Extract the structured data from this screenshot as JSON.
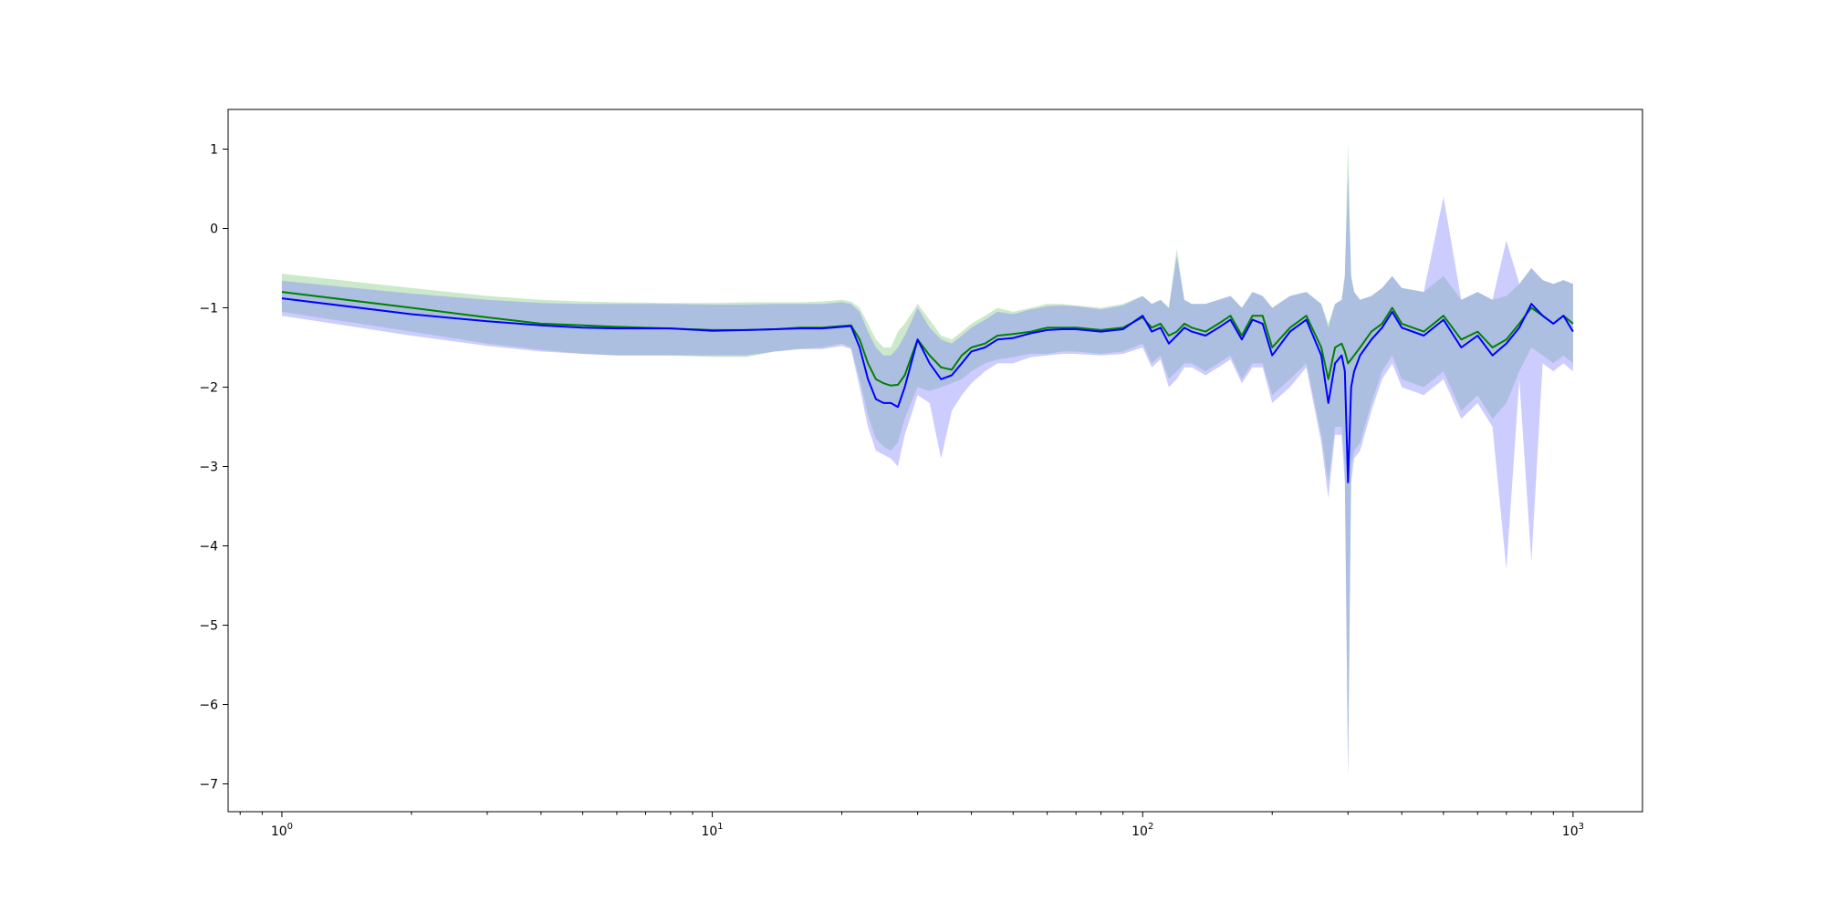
{
  "chart_data": {
    "type": "line",
    "title": "",
    "xlabel": "",
    "ylabel": "",
    "x_scale": "log",
    "xlim": [
      0.75,
      1450
    ],
    "ylim": [
      -7.35,
      1.5
    ],
    "grid": false,
    "legend": "none",
    "x_ticks": [
      {
        "value": 1,
        "base": "10",
        "exp": "0"
      },
      {
        "value": 10,
        "base": "10",
        "exp": "1"
      },
      {
        "value": 100,
        "base": "10",
        "exp": "2"
      },
      {
        "value": 1000,
        "base": "10",
        "exp": "3"
      }
    ],
    "y_ticks": [
      {
        "value": 1,
        "label": "1"
      },
      {
        "value": 0,
        "label": "0"
      },
      {
        "value": -1,
        "label": "−1"
      },
      {
        "value": -2,
        "label": "−2"
      },
      {
        "value": -3,
        "label": "−3"
      },
      {
        "value": -4,
        "label": "−4"
      },
      {
        "value": -5,
        "label": "−5"
      },
      {
        "value": -6,
        "label": "−6"
      },
      {
        "value": -7,
        "label": "−7"
      }
    ],
    "series": [
      {
        "color": "#008000",
        "band_color": "#7fc77f",
        "x": [
          1,
          2,
          3,
          4,
          5,
          6,
          8,
          10,
          12,
          14,
          16,
          18,
          20,
          21,
          22,
          23,
          24,
          25,
          26,
          27,
          28,
          30,
          32,
          34,
          36,
          38,
          40,
          43,
          46,
          50,
          55,
          60,
          65,
          70,
          80,
          90,
          100,
          105,
          110,
          115,
          120,
          125,
          130,
          140,
          150,
          160,
          170,
          180,
          190,
          200,
          220,
          240,
          260,
          270,
          280,
          290,
          295,
          300,
          305,
          310,
          320,
          340,
          360,
          380,
          400,
          450,
          500,
          550,
          600,
          650,
          700,
          750,
          800,
          850,
          900,
          950,
          1000
        ],
        "y": [
          -0.8,
          -1.0,
          -1.12,
          -1.2,
          -1.22,
          -1.24,
          -1.26,
          -1.28,
          -1.28,
          -1.27,
          -1.25,
          -1.25,
          -1.23,
          -1.22,
          -1.4,
          -1.7,
          -1.9,
          -1.95,
          -1.98,
          -1.97,
          -1.85,
          -1.4,
          -1.6,
          -1.75,
          -1.78,
          -1.6,
          -1.5,
          -1.45,
          -1.35,
          -1.33,
          -1.3,
          -1.25,
          -1.25,
          -1.25,
          -1.28,
          -1.25,
          -1.12,
          -1.25,
          -1.2,
          -1.35,
          -1.3,
          -1.2,
          -1.25,
          -1.3,
          -1.2,
          -1.1,
          -1.35,
          -1.1,
          -1.1,
          -1.5,
          -1.25,
          -1.1,
          -1.5,
          -1.9,
          -1.5,
          -1.45,
          -1.55,
          -1.7,
          -1.65,
          -1.6,
          -1.5,
          -1.3,
          -1.2,
          -1.0,
          -1.2,
          -1.3,
          -1.1,
          -1.4,
          -1.3,
          -1.5,
          -1.4,
          -1.2,
          -1.0,
          -1.1,
          -1.2,
          -1.1,
          -1.2
        ],
        "y_lower": [
          -1.05,
          -1.3,
          -1.45,
          -1.53,
          -1.58,
          -1.6,
          -1.6,
          -1.62,
          -1.62,
          -1.55,
          -1.52,
          -1.5,
          -1.45,
          -1.5,
          -1.9,
          -2.35,
          -2.65,
          -2.75,
          -2.8,
          -2.7,
          -2.4,
          -2.0,
          -2.05,
          -2.0,
          -1.95,
          -1.9,
          -1.8,
          -1.7,
          -1.65,
          -1.62,
          -1.58,
          -1.58,
          -1.55,
          -1.55,
          -1.58,
          -1.55,
          -1.45,
          -1.7,
          -1.6,
          -1.9,
          -1.8,
          -1.7,
          -1.7,
          -1.8,
          -1.7,
          -1.6,
          -1.9,
          -1.7,
          -1.7,
          -2.1,
          -1.9,
          -1.7,
          -2.6,
          -3.2,
          -2.5,
          -2.5,
          -3.0,
          -6.9,
          -3.0,
          -2.8,
          -2.7,
          -2.2,
          -1.8,
          -1.6,
          -1.9,
          -2.0,
          -1.8,
          -2.3,
          -2.1,
          -2.4,
          -2.2,
          -1.8,
          -1.5,
          -1.6,
          -1.7,
          -1.6,
          -1.7
        ],
        "y_upper": [
          -0.57,
          -0.75,
          -0.85,
          -0.9,
          -0.92,
          -0.93,
          -0.94,
          -0.94,
          -0.93,
          -0.93,
          -0.93,
          -0.92,
          -0.9,
          -0.92,
          -1.0,
          -1.2,
          -1.4,
          -1.5,
          -1.5,
          -1.3,
          -1.2,
          -0.95,
          -1.15,
          -1.35,
          -1.4,
          -1.3,
          -1.2,
          -1.1,
          -1.0,
          -1.05,
          -1.0,
          -0.95,
          -0.95,
          -0.97,
          -1.0,
          -0.95,
          -0.85,
          -0.95,
          -0.9,
          -1.0,
          -0.25,
          -0.9,
          -0.95,
          -0.95,
          -0.9,
          -0.85,
          -1.0,
          -0.8,
          -0.85,
          -1.0,
          -0.85,
          -0.8,
          -0.95,
          -1.2,
          -0.95,
          -0.9,
          -0.6,
          1.1,
          -0.6,
          -0.8,
          -0.9,
          -0.85,
          -0.75,
          -0.6,
          -0.75,
          -0.8,
          -0.6,
          -0.9,
          -0.8,
          -0.9,
          -0.85,
          -0.7,
          -0.5,
          -0.65,
          -0.7,
          -0.65,
          -0.7
        ]
      },
      {
        "color": "#0000ff",
        "band_color": "#8080ff",
        "x": [
          1,
          2,
          3,
          4,
          5,
          6,
          8,
          10,
          12,
          14,
          16,
          18,
          20,
          21,
          22,
          23,
          24,
          25,
          26,
          27,
          28,
          30,
          32,
          34,
          36,
          38,
          40,
          43,
          46,
          50,
          55,
          60,
          65,
          70,
          80,
          90,
          100,
          105,
          110,
          115,
          120,
          125,
          130,
          140,
          150,
          160,
          170,
          180,
          190,
          200,
          220,
          240,
          260,
          270,
          280,
          290,
          295,
          300,
          305,
          310,
          320,
          340,
          360,
          380,
          400,
          450,
          500,
          550,
          600,
          650,
          700,
          750,
          800,
          850,
          900,
          950,
          1000
        ],
        "y": [
          -0.88,
          -1.08,
          -1.17,
          -1.22,
          -1.25,
          -1.26,
          -1.26,
          -1.29,
          -1.28,
          -1.27,
          -1.26,
          -1.26,
          -1.24,
          -1.23,
          -1.5,
          -1.9,
          -2.15,
          -2.2,
          -2.2,
          -2.25,
          -2.0,
          -1.4,
          -1.7,
          -1.9,
          -1.85,
          -1.7,
          -1.55,
          -1.5,
          -1.4,
          -1.38,
          -1.32,
          -1.28,
          -1.27,
          -1.27,
          -1.3,
          -1.27,
          -1.1,
          -1.3,
          -1.25,
          -1.45,
          -1.35,
          -1.25,
          -1.3,
          -1.35,
          -1.25,
          -1.15,
          -1.4,
          -1.15,
          -1.2,
          -1.6,
          -1.3,
          -1.15,
          -1.6,
          -2.2,
          -1.7,
          -1.6,
          -1.8,
          -3.2,
          -2.0,
          -1.8,
          -1.6,
          -1.4,
          -1.25,
          -1.05,
          -1.25,
          -1.35,
          -1.15,
          -1.5,
          -1.35,
          -1.6,
          -1.45,
          -1.25,
          -0.95,
          -1.1,
          -1.2,
          -1.1,
          -1.3
        ],
        "y_lower": [
          -1.1,
          -1.35,
          -1.48,
          -1.55,
          -1.58,
          -1.6,
          -1.6,
          -1.6,
          -1.6,
          -1.55,
          -1.52,
          -1.52,
          -1.48,
          -1.52,
          -2.0,
          -2.5,
          -2.8,
          -2.85,
          -2.9,
          -3.0,
          -2.6,
          -2.1,
          -2.2,
          -2.9,
          -2.3,
          -2.1,
          -1.95,
          -1.8,
          -1.7,
          -1.7,
          -1.62,
          -1.6,
          -1.58,
          -1.58,
          -1.6,
          -1.58,
          -1.5,
          -1.75,
          -1.65,
          -2.0,
          -1.9,
          -1.75,
          -1.75,
          -1.85,
          -1.75,
          -1.65,
          -1.95,
          -1.75,
          -1.75,
          -2.2,
          -2.0,
          -1.75,
          -2.7,
          -3.4,
          -2.6,
          -2.6,
          -3.2,
          -6.9,
          -3.2,
          -2.9,
          -2.8,
          -2.3,
          -1.9,
          -1.7,
          -2.0,
          -2.1,
          -1.9,
          -2.4,
          -2.2,
          -2.5,
          -4.3,
          -1.9,
          -4.2,
          -1.7,
          -1.8,
          -1.7,
          -1.8
        ],
        "y_upper": [
          -0.66,
          -0.82,
          -0.9,
          -0.94,
          -0.95,
          -0.95,
          -0.95,
          -0.96,
          -0.96,
          -0.95,
          -0.95,
          -0.95,
          -0.93,
          -0.95,
          -1.05,
          -1.3,
          -1.5,
          -1.6,
          -1.6,
          -1.5,
          -1.35,
          -1.0,
          -1.25,
          -1.4,
          -1.45,
          -1.35,
          -1.25,
          -1.15,
          -1.05,
          -1.08,
          -1.02,
          -0.98,
          -0.97,
          -0.98,
          -1.02,
          -0.97,
          -0.85,
          -0.95,
          -0.9,
          -1.0,
          -0.35,
          -0.9,
          -0.95,
          -0.95,
          -0.9,
          -0.85,
          -1.0,
          -0.8,
          -0.85,
          -1.0,
          -0.85,
          -0.8,
          -0.95,
          -1.25,
          -0.95,
          -0.9,
          -0.6,
          0.7,
          -0.6,
          -0.8,
          -0.9,
          -0.85,
          -0.75,
          -0.6,
          -0.75,
          -0.8,
          0.4,
          -0.9,
          -0.8,
          -0.9,
          -0.15,
          -0.7,
          -0.5,
          -0.65,
          -0.7,
          -0.65,
          -0.7
        ]
      }
    ]
  }
}
